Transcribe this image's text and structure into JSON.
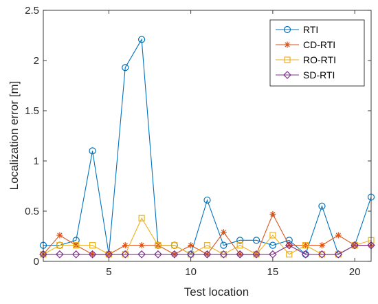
{
  "chart_data": {
    "type": "line",
    "xlabel": "Test location",
    "ylabel": "Localization error [m]",
    "xlim": [
      1,
      21
    ],
    "ylim": [
      0,
      2.5
    ],
    "xticks": [
      5,
      10,
      15,
      20
    ],
    "yticks": [
      0,
      0.5,
      1,
      1.5,
      2,
      2.5
    ],
    "xtick_labels": [
      "5",
      "10",
      "15",
      "20"
    ],
    "ytick_labels": [
      "0",
      "0.5",
      "1",
      "1.5",
      "2",
      "2.5"
    ],
    "grid": false,
    "legend_position": "top-right",
    "x": [
      1,
      2,
      3,
      4,
      5,
      6,
      7,
      8,
      9,
      10,
      11,
      12,
      13,
      14,
      15,
      16,
      17,
      18,
      19,
      20,
      21
    ],
    "series": [
      {
        "name": "RTI",
        "color": "#0072BD",
        "marker": "circle",
        "values": [
          0.16,
          0.16,
          0.21,
          1.1,
          0.07,
          1.93,
          2.21,
          0.16,
          0.16,
          0.07,
          0.61,
          0.16,
          0.21,
          0.21,
          0.16,
          0.21,
          0.07,
          0.55,
          0.07,
          0.16,
          0.64
        ]
      },
      {
        "name": "CD-RTI",
        "color": "#D95319",
        "marker": "asterisk",
        "values": [
          0.07,
          0.26,
          0.16,
          0.07,
          0.07,
          0.16,
          0.16,
          0.16,
          0.07,
          0.16,
          0.07,
          0.29,
          0.07,
          0.07,
          0.47,
          0.16,
          0.16,
          0.16,
          0.26,
          0.16,
          0.16
        ]
      },
      {
        "name": "RO-RTI",
        "color": "#EDB120",
        "marker": "square",
        "values": [
          0.07,
          0.16,
          0.16,
          0.16,
          0.07,
          0.07,
          0.43,
          0.16,
          0.16,
          0.07,
          0.16,
          0.07,
          0.16,
          0.07,
          0.26,
          0.07,
          0.16,
          0.07,
          0.07,
          0.16,
          0.21
        ]
      },
      {
        "name": "SD-RTI",
        "color": "#7E2F8E",
        "marker": "diamond",
        "values": [
          0.07,
          0.07,
          0.07,
          0.07,
          0.07,
          0.07,
          0.07,
          0.07,
          0.07,
          0.07,
          0.07,
          0.07,
          0.07,
          0.07,
          0.07,
          0.16,
          0.07,
          0.07,
          0.07,
          0.16,
          0.16
        ]
      }
    ]
  }
}
